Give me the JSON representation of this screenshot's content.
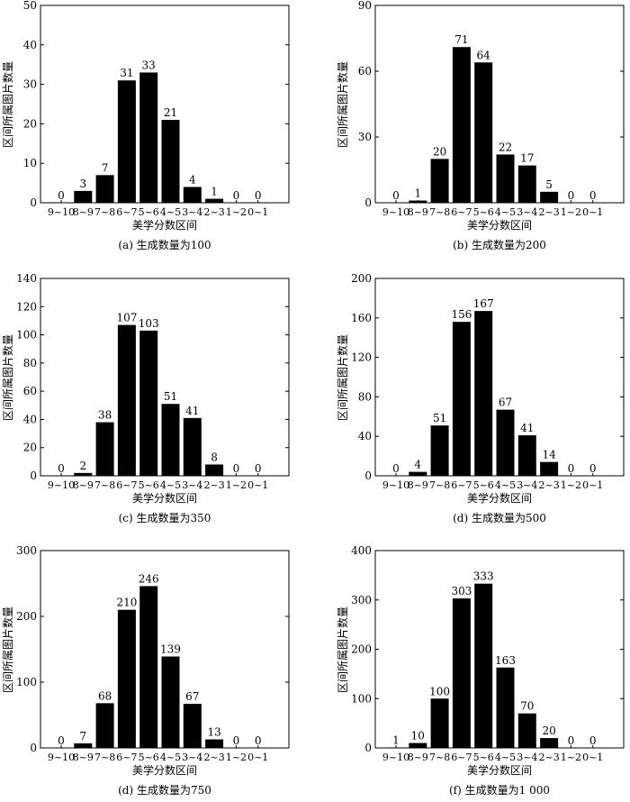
{
  "chart_data": [
    {
      "type": "bar",
      "title": "(a) 生成数量为100",
      "xlabel": "美学分数区间",
      "ylabel": "区间所属图片数量",
      "categories": [
        "9~10",
        "8~9",
        "7~8",
        "6~7",
        "5~6",
        "4~5",
        "3~4",
        "2~3",
        "1~2",
        "0~1"
      ],
      "values": [
        0,
        3,
        7,
        31,
        33,
        21,
        4,
        1,
        0,
        0
      ],
      "ylim": [
        0,
        50
      ],
      "yticks": [
        0,
        10,
        20,
        30,
        40,
        50
      ]
    },
    {
      "type": "bar",
      "title": "(b) 生成数量为200",
      "xlabel": "美学分数区间",
      "ylabel": "区间所属图片数量",
      "categories": [
        "9~10",
        "8~9",
        "7~8",
        "6~7",
        "5~6",
        "4~5",
        "3~4",
        "2~3",
        "1~2",
        "0~1"
      ],
      "values": [
        0,
        1,
        20,
        71,
        64,
        22,
        17,
        5,
        0,
        0
      ],
      "ylim": [
        0,
        90
      ],
      "yticks": [
        0,
        30,
        60,
        90
      ]
    },
    {
      "type": "bar",
      "title": "(c) 生成数量为350",
      "xlabel": "美学分数区间",
      "ylabel": "区间所属图片数量",
      "categories": [
        "9~10",
        "8~9",
        "7~8",
        "6~7",
        "5~6",
        "4~5",
        "3~4",
        "2~3",
        "1~2",
        "0~1"
      ],
      "values": [
        0,
        2,
        38,
        107,
        103,
        51,
        41,
        8,
        0,
        0
      ],
      "ylim": [
        0,
        140
      ],
      "yticks": [
        0,
        20,
        40,
        60,
        80,
        100,
        120,
        140
      ]
    },
    {
      "type": "bar",
      "title": "(d) 生成数量为500",
      "xlabel": "美学分数区间",
      "ylabel": "区间所属图片数量",
      "categories": [
        "9~10",
        "8~9",
        "7~8",
        "6~7",
        "5~6",
        "4~5",
        "3~4",
        "2~3",
        "1~2",
        "0~1"
      ],
      "values": [
        0,
        4,
        51,
        156,
        167,
        67,
        41,
        14,
        0,
        0
      ],
      "ylim": [
        0,
        200
      ],
      "yticks": [
        0,
        40,
        80,
        120,
        160,
        200
      ]
    },
    {
      "type": "bar",
      "title": "(d) 生成数量为750",
      "xlabel": "美学分数区间",
      "ylabel": "区间所属图片数量",
      "categories": [
        "9~10",
        "8~9",
        "7~8",
        "6~7",
        "5~6",
        "4~5",
        "3~4",
        "2~3",
        "1~2",
        "0~1"
      ],
      "values": [
        0,
        7,
        68,
        210,
        246,
        139,
        67,
        13,
        0,
        0
      ],
      "ylim": [
        0,
        300
      ],
      "yticks": [
        0,
        100,
        200,
        300
      ]
    },
    {
      "type": "bar",
      "title": "(f) 生成数量为1 000",
      "xlabel": "美学分数区间",
      "ylabel": "区间所属图片数量",
      "categories": [
        "9~10",
        "8~9",
        "7~8",
        "6~7",
        "5~6",
        "4~5",
        "3~4",
        "2~3",
        "1~2",
        "0~1"
      ],
      "values": [
        1,
        10,
        100,
        303,
        333,
        163,
        70,
        20,
        0,
        0
      ],
      "ylim": [
        0,
        400
      ],
      "yticks": [
        0,
        100,
        200,
        300,
        400
      ]
    }
  ]
}
